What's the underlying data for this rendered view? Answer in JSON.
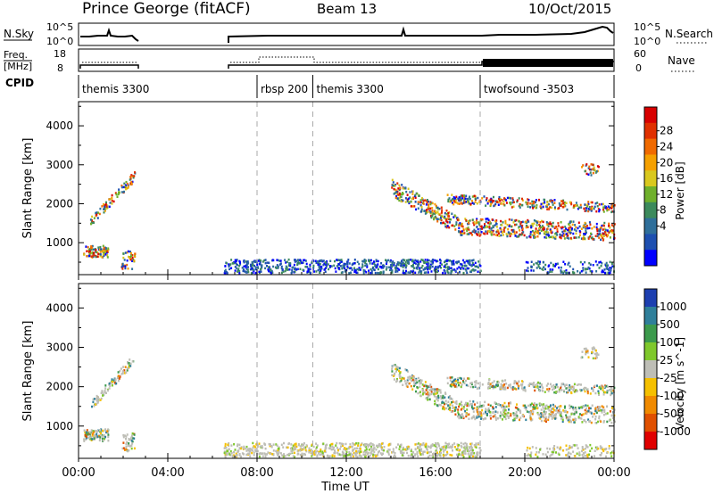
{
  "header": {
    "station": "Prince George (fitACF)",
    "beam": "Beam 13",
    "date": "10/Oct/2015"
  },
  "strips": {
    "nsky": {
      "label": "N.Sky",
      "ticks": [
        "10^5",
        "10^0"
      ]
    },
    "nsearch": {
      "label": "N.Search",
      "ticks": [
        "10^5",
        "10^0"
      ]
    },
    "freq": {
      "label_top": "Freq.",
      "label_unit": "[MHz]",
      "ticks": [
        "18",
        "8"
      ]
    },
    "nave": {
      "label": "Nave",
      "ticks": [
        "60",
        "0"
      ]
    },
    "cpid": {
      "label": "CPID"
    }
  },
  "chart_data": {
    "type": "heatmap",
    "x_axis": {
      "label": "Time UT",
      "ticks": [
        "00:00",
        "04:00",
        "08:00",
        "12:00",
        "16:00",
        "20:00",
        "00:00"
      ],
      "range_hours": [
        0,
        24
      ]
    },
    "cpid_segments": [
      {
        "start_h": 0.0,
        "end_h": 8.0,
        "label": "themis 3300"
      },
      {
        "start_h": 8.0,
        "end_h": 10.5,
        "label": "rbsp 200"
      },
      {
        "start_h": 10.5,
        "end_h": 18.0,
        "label": "themis 3300"
      },
      {
        "start_h": 18.0,
        "end_h": 24.0,
        "label": "twofsound -3503"
      }
    ],
    "panels": [
      {
        "name": "power",
        "ylabel": "Slant Range [km]",
        "yticks": [
          "4000",
          "3000",
          "2000",
          "1000"
        ],
        "ylim_km": [
          180,
          4620
        ],
        "colorbar_label": "Power [dB]",
        "colorbar_ticks": [
          "28",
          "24",
          "20",
          "16",
          "12",
          "8",
          "4"
        ]
      },
      {
        "name": "velocity",
        "ylabel": "Slant Range [km]",
        "yticks": [
          "4000",
          "3000",
          "2000",
          "1000"
        ],
        "ylim_km": [
          180,
          4620
        ],
        "colorbar_label": "Velocity [m s^-1]",
        "colorbar_ticks": [
          "1000",
          "500",
          "100",
          "25",
          "-25",
          "-100",
          "-500",
          "-1000"
        ]
      }
    ],
    "colors": {
      "power": [
        "#0000ff",
        "#1d4fb0",
        "#2f6f9a",
        "#3c8a5c",
        "#6fb02c",
        "#d9c81e",
        "#f5a000",
        "#f06a00",
        "#e03000",
        "#d80000"
      ],
      "velocity_pos": [
        "#1d3fb0",
        "#2f7f9a",
        "#3c9a4c",
        "#7fc82c"
      ],
      "velocity_neg": [
        "#f5c000",
        "#f08a00",
        "#e05000",
        "#e00000"
      ],
      "gray": "#bebeb6"
    }
  }
}
